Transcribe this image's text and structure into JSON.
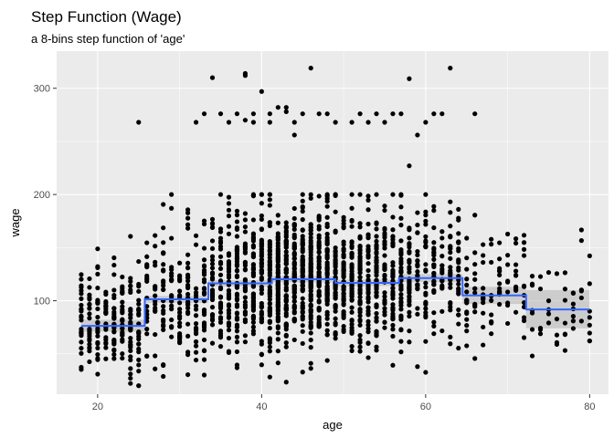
{
  "chart_data": {
    "type": "scatter",
    "title": "Step Function (Wage)",
    "subtitle": "a 8-bins step function of 'age'",
    "xlabel": "age",
    "ylabel": "wage",
    "xlim": [
      15.0,
      82.3
    ],
    "ylim": [
      12,
      335
    ],
    "x_ticks": [
      20,
      40,
      60,
      80
    ],
    "y_ticks": [
      100,
      200,
      300
    ],
    "grid": true,
    "background": "#ebebeb",
    "point_color": "#000000",
    "line_color": "#3366ff",
    "ribbon_color": "#b3b3b3",
    "step_fit": {
      "breaks": [
        18,
        25.75,
        33.5,
        41.25,
        49,
        56.75,
        64.5,
        72.25,
        80
      ],
      "fit": [
        76.3,
        101.3,
        116.4,
        120.2,
        116.8,
        121.3,
        105.0,
        91.8
      ],
      "lower": [
        71,
        98,
        113.5,
        117.3,
        113.8,
        117.5,
        97,
        74
      ],
      "upper": [
        82,
        104.5,
        119.3,
        123.1,
        119.8,
        125.1,
        113,
        110
      ]
    },
    "high_earners": {
      "description_free": true,
      "x": [
        25,
        33,
        34,
        36,
        37,
        38,
        38,
        39,
        40,
        41,
        42,
        43,
        44,
        46,
        48,
        51,
        54,
        57,
        58,
        58,
        59,
        61,
        63,
        66,
        32,
        35,
        38,
        41,
        45,
        49,
        52,
        55,
        60,
        62,
        44,
        47,
        53,
        56,
        39,
        43
      ],
      "y": [
        268,
        276,
        310,
        268,
        276,
        314,
        312,
        268,
        297,
        276,
        282,
        278,
        256,
        319,
        276,
        268,
        276,
        276,
        309,
        227,
        256,
        276,
        319,
        276,
        268,
        276,
        270,
        268,
        276,
        268,
        276,
        268,
        268,
        276,
        268,
        276,
        268,
        276,
        276,
        282
      ]
    },
    "bulk": {
      "age_min": 18,
      "age_max": 80,
      "peak_age": 45
    }
  }
}
